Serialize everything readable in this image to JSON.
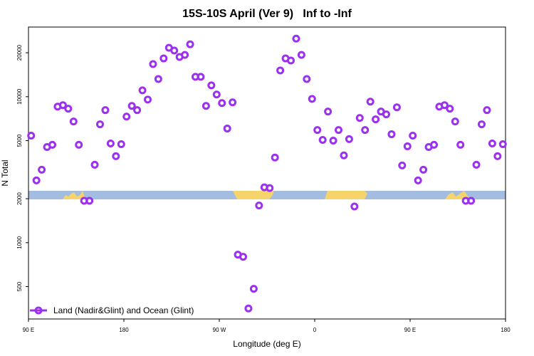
{
  "chart_data": {
    "type": "scatter",
    "title": "15S-10S April (Ver 9)   Inf to -Inf",
    "x_label": "Longitude (deg E)",
    "y_label": "N Total",
    "x": [
      92.5,
      97.5,
      102.5,
      107.5,
      112.5,
      117.5,
      122.5,
      127.5,
      132.5,
      137.5,
      142.5,
      147.5,
      152.5,
      157.5,
      162.5,
      167.5,
      172.5,
      177.5,
      182.5,
      187.5,
      192.5,
      197.5,
      202.5,
      207.5,
      212.5,
      217.5,
      222.5,
      227.5,
      232.5,
      237.5,
      242.5,
      247.5,
      252.5,
      257.5,
      262.5,
      267.5,
      272.5,
      277.5,
      282.5,
      287.5,
      292.5,
      297.5,
      302.5,
      307.5,
      312.5,
      317.5,
      322.5,
      327.5,
      332.5,
      337.5,
      342.5,
      347.5,
      352.5,
      357.5,
      362.5,
      367.5,
      372.5,
      377.5,
      382.5,
      387.5,
      392.5,
      397.5,
      402.5,
      407.5,
      412.5,
      417.5,
      422.5,
      427.5,
      432.5,
      437.5,
      442.5,
      447.5,
      452.5,
      457.5,
      462.5,
      467.5,
      472.5,
      477.5,
      482.5,
      487.5,
      492.5,
      497.5,
      502.5,
      507.5,
      512.5,
      517.5,
      522.5,
      527.5,
      532.5,
      537.5
    ],
    "series": [
      {
        "name": "Land (Nadir&Glint) and Ocean (Glint)",
        "color": "#9b30f0",
        "values": [
          5410,
          2670,
          3160,
          4520,
          4680,
          8550,
          8750,
          8280,
          6760,
          4680,
          1935,
          1935,
          3420,
          6470,
          8090,
          4780,
          3910,
          4730,
          7310,
          8650,
          8090,
          11060,
          9560,
          16720,
          13220,
          18290,
          21630,
          20700,
          18710,
          19330,
          22860,
          13680,
          13680,
          8650,
          11960,
          10350,
          9040,
          6050,
          9150,
          828,
          800,
          354,
          483,
          1798,
          2393,
          2366,
          3830,
          15130,
          18290,
          17700,
          25000,
          19330,
          13220,
          9660,
          5910,
          5060,
          7910,
          5000,
          5910,
          3960,
          5120,
          1770,
          7150,
          5910,
          9250,
          7000,
          7910,
          7570,
          5530,
          8460,
          3380,
          4570,
          5410,
          2670,
          3160,
          4520,
          4680,
          8550,
          8750,
          8280,
          6760,
          4680,
          1935,
          1935,
          3420,
          6470,
          8090,
          4780,
          3910,
          4730
        ]
      }
    ],
    "xlim": [
      90,
      540
    ],
    "xticks": [
      {
        "value": 90,
        "label": "90 E"
      },
      {
        "value": 180,
        "label": "180"
      },
      {
        "value": 270,
        "label": "90 W"
      },
      {
        "value": 360,
        "label": "0"
      },
      {
        "value": 450,
        "label": "90 E"
      },
      {
        "value": 540,
        "label": "180"
      }
    ],
    "ylim": [
      300,
      30000
    ],
    "yticks": [
      500,
      1000,
      2000,
      5000,
      10000,
      20000
    ],
    "ylog": true,
    "legend": "bottom-left"
  }
}
